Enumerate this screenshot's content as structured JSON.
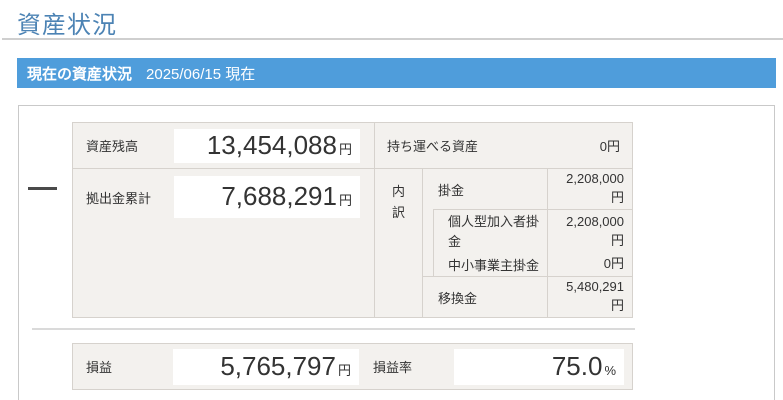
{
  "page": {
    "title": "資産状況"
  },
  "banner": {
    "title": "現在の資産状況",
    "date": "2025/06/15 現在"
  },
  "summary": {
    "asset_balance": {
      "label": "資産残高",
      "amount": "13,454,088",
      "unit": "円"
    },
    "portable_assets": {
      "label": "持ち運べる資産",
      "value": "0円"
    },
    "contributions_total": {
      "label": "拠出金累計",
      "amount": "7,688,291",
      "unit": "円"
    },
    "breakdown": {
      "header": "内訳",
      "premium": {
        "label": "掛金",
        "value": "2,208,000円"
      },
      "individual_premium": {
        "label": "個人型加入者掛金",
        "value": "2,208,000円"
      },
      "small_business_premium": {
        "label": "中小事業主掛金",
        "value": "0円"
      },
      "transfer": {
        "label": "移換金",
        "value": "5,480,291円"
      }
    }
  },
  "profit_loss": {
    "label": "損益",
    "amount": "5,765,797",
    "unit": "円"
  },
  "profit_loss_rate": {
    "label": "損益率",
    "amount": "75.0",
    "unit": "%"
  },
  "colors": {
    "title_blue": "#4c83b4",
    "banner_blue": "#4f9ddb",
    "cell_gray": "#f3f1ee",
    "border_gray": "#d6d2cd"
  }
}
